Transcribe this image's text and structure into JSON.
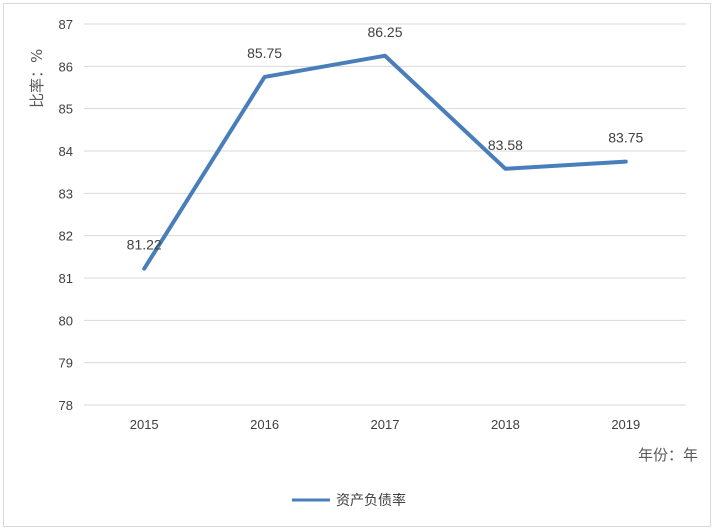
{
  "chart_data": {
    "type": "line",
    "categories": [
      "2015",
      "2016",
      "2017",
      "2018",
      "2019"
    ],
    "series": [
      {
        "name": "资产负债率",
        "values": [
          81.22,
          85.75,
          86.25,
          83.58,
          83.75
        ],
        "color": "#4a7ebb"
      }
    ],
    "data_labels": [
      "81.22",
      "85.75",
      "86.25",
      "83.58",
      "83.75"
    ],
    "ylabel": "比率：%",
    "xlabel": "年份：年",
    "ylim": [
      78,
      87
    ],
    "yticks": [
      "78",
      "79",
      "80",
      "81",
      "82",
      "83",
      "84",
      "85",
      "86",
      "87"
    ],
    "grid": true,
    "legend_position": "bottom",
    "gridline_color": "#d9d9d9"
  }
}
